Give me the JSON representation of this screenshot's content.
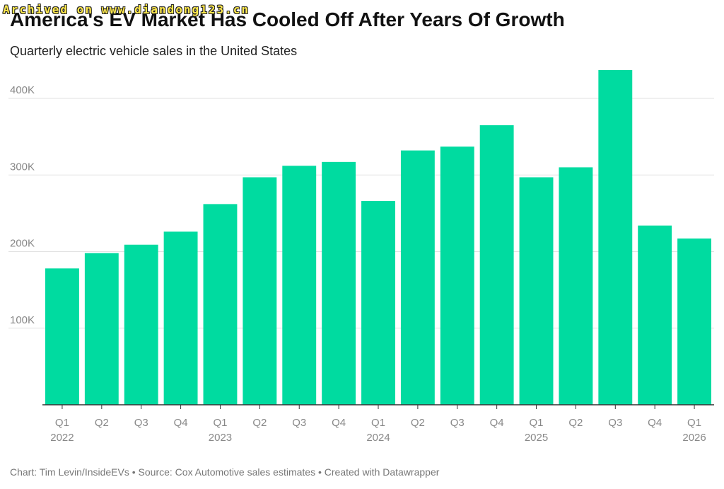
{
  "watermark": "Archived on www.diandong123.cn",
  "title": "America's EV Market Has Cooled Off After Years Of Growth",
  "subtitle": "Quarterly electric vehicle sales in the United States",
  "footer": "Chart: Tim Levin/InsideEVs • Source: Cox Automotive sales estimates • Created with Datawrapper",
  "colors": {
    "bar": "#00dba0",
    "grid": "#e2e2e2",
    "axis": "#333333"
  },
  "chart_data": {
    "type": "bar",
    "title": "America's EV Market Has Cooled Off After Years Of Growth",
    "subtitle": "Quarterly electric vehicle sales in the United States",
    "xlabel": "",
    "ylabel": "",
    "ylim": [
      0,
      400000
    ],
    "grid": true,
    "y_ticks": [
      {
        "value": 100000,
        "label": "100K"
      },
      {
        "value": 200000,
        "label": "200K"
      },
      {
        "value": 300000,
        "label": "300K"
      },
      {
        "value": 400000,
        "label": "400K"
      }
    ],
    "categories": [
      {
        "quarter": "Q1",
        "year": "2022"
      },
      {
        "quarter": "Q2",
        "year": ""
      },
      {
        "quarter": "Q3",
        "year": ""
      },
      {
        "quarter": "Q4",
        "year": ""
      },
      {
        "quarter": "Q1",
        "year": "2023"
      },
      {
        "quarter": "Q2",
        "year": ""
      },
      {
        "quarter": "Q3",
        "year": ""
      },
      {
        "quarter": "Q4",
        "year": ""
      },
      {
        "quarter": "Q1",
        "year": "2024"
      },
      {
        "quarter": "Q2",
        "year": ""
      },
      {
        "quarter": "Q3",
        "year": ""
      },
      {
        "quarter": "Q4",
        "year": ""
      },
      {
        "quarter": "Q1",
        "year": "2025"
      },
      {
        "quarter": "Q2",
        "year": ""
      },
      {
        "quarter": "Q3",
        "year": ""
      },
      {
        "quarter": "Q4",
        "year": ""
      },
      {
        "quarter": "Q1",
        "year": "2026"
      }
    ],
    "values": [
      178000,
      198000,
      209000,
      226000,
      262000,
      297000,
      312000,
      317000,
      266000,
      332000,
      337000,
      365000,
      297000,
      310000,
      437000,
      234000,
      217000
    ]
  }
}
